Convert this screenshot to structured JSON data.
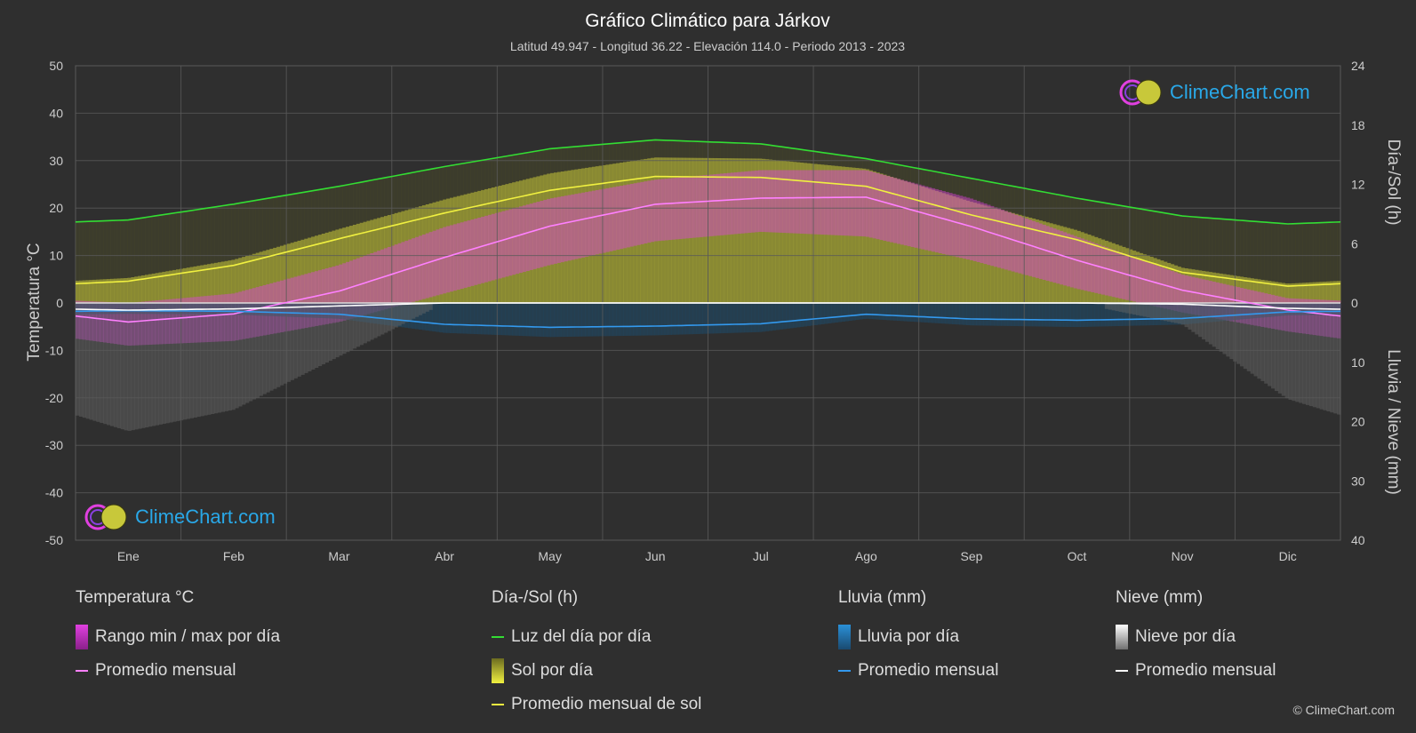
{
  "header": {
    "title": "Gráfico Climático para Járkov",
    "subtitle": "Latitud 49.947 - Longitud 36.22 - Elevación 114.0 - Periodo 2013 - 2023"
  },
  "logo_text": "ClimeChart.com",
  "copyright": "© ClimeChart.com",
  "axes": {
    "left_label": "Temperatura °C",
    "right_top_label": "Día-/Sol (h)",
    "right_bottom_label": "Lluvia / Nieve (mm)"
  },
  "legend": {
    "temperature": {
      "title": "Temperatura °C",
      "items": [
        "Rango min / max por día",
        "Promedio mensual"
      ]
    },
    "sun": {
      "title": "Día-/Sol (h)",
      "items": [
        "Luz del día por día",
        "Sol por día",
        "Promedio mensual de sol"
      ]
    },
    "rain": {
      "title": "Lluvia (mm)",
      "items": [
        "Lluvia por día",
        "Promedio mensual"
      ]
    },
    "snow": {
      "title": "Nieve (mm)",
      "items": [
        "Nieve por día",
        "Promedio mensual"
      ]
    }
  },
  "colors": {
    "background": "#2f2f2f",
    "grid": "#5a5a5a",
    "temp_range": "#e040e0",
    "temp_avg": "#ff80ff",
    "daylight": "#33dd33",
    "sunshine": "#c8c83a",
    "sun_avg": "#f0f040",
    "rain": "#2a90d8",
    "rain_avg": "#3399ee",
    "snow": "#d0d0d0",
    "snow_avg": "#ffffff",
    "logo": "#29a8e8"
  },
  "chart_data": {
    "type": "line",
    "categories": [
      "Ene",
      "Feb",
      "Mar",
      "Abr",
      "May",
      "Jun",
      "Jul",
      "Ago",
      "Sep",
      "Oct",
      "Nov",
      "Dic"
    ],
    "y_left": {
      "label": "Temperatura °C",
      "ylim": [
        -50,
        50
      ],
      "ticks": [
        50,
        40,
        30,
        20,
        10,
        0,
        -10,
        -20,
        -30,
        -40,
        -50
      ]
    },
    "y_right_top": {
      "label": "Día-/Sol (h)",
      "ylim": [
        0,
        24
      ],
      "ticks": [
        24,
        18,
        12,
        6,
        0
      ]
    },
    "y_right_bottom": {
      "label": "Lluvia / Nieve (mm)",
      "ylim": [
        0,
        40
      ],
      "ticks": [
        0,
        10,
        20,
        30,
        40
      ]
    },
    "series": [
      {
        "name": "Luz del día por día",
        "axis": "hours",
        "values": [
          8.4,
          10.0,
          11.8,
          13.8,
          15.6,
          16.5,
          16.1,
          14.6,
          12.6,
          10.6,
          8.8,
          8.0
        ]
      },
      {
        "name": "Promedio mensual de sol",
        "axis": "hours",
        "values": [
          2.2,
          3.8,
          6.5,
          9.1,
          11.4,
          12.8,
          12.7,
          11.8,
          8.9,
          6.4,
          3.1,
          1.7
        ]
      },
      {
        "name": "Promedio mensual",
        "axis": "temperature",
        "values": [
          -4.0,
          -2.3,
          2.5,
          9.6,
          16.2,
          20.8,
          22.1,
          22.3,
          16.1,
          9.0,
          2.7,
          -1.5
        ]
      },
      {
        "name": "Lluvia promedio mensual",
        "axis": "precip",
        "values": [
          1.3,
          1.4,
          1.9,
          3.6,
          4.1,
          3.9,
          3.5,
          1.9,
          2.7,
          2.9,
          2.6,
          1.5
        ]
      },
      {
        "name": "Nieve promedio mensual",
        "axis": "precip",
        "values": [
          1.2,
          1.0,
          0.5,
          0.0,
          0.0,
          0.0,
          0.0,
          0.0,
          0.0,
          0.0,
          0.2,
          0.9
        ]
      }
    ],
    "temp_range": {
      "min": [
        -9,
        -8,
        -4,
        2,
        8,
        13,
        15,
        14,
        9,
        3,
        -2,
        -6
      ],
      "max": [
        0,
        2,
        8,
        16,
        22,
        26,
        28,
        28,
        22,
        14,
        6,
        1
      ]
    },
    "grid": true
  }
}
